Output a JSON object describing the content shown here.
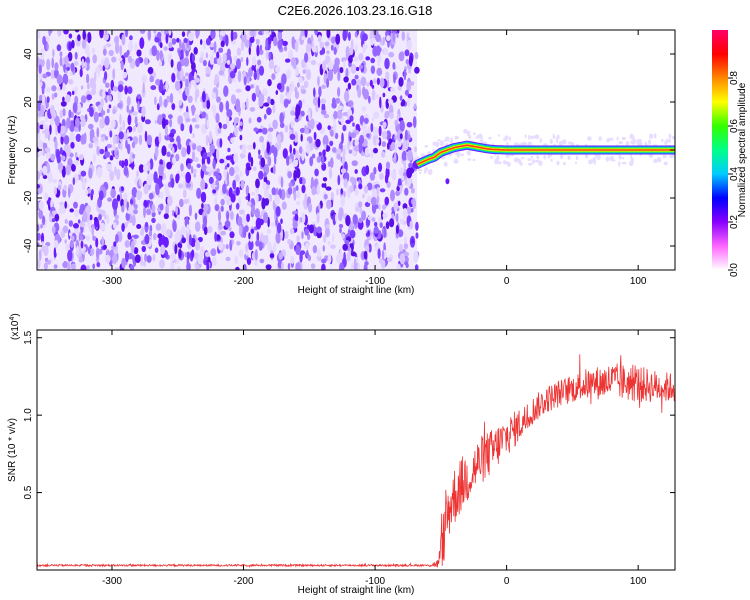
{
  "title": "C2E6.2026.103.23.16.G18",
  "colors": {
    "snr_line": "#ee3333",
    "axis": "#000000",
    "spectro_dense": "#6a1bff",
    "spectro_light": "#e3d4ff",
    "signal_band": "#ff3a20"
  },
  "colorbar": {
    "label": "Normalized spectral amplitude",
    "ticks": [
      "0.0",
      "0.2",
      "0.4",
      "0.6",
      "0.8"
    ],
    "tick_values": [
      0.0,
      0.2,
      0.4,
      0.6,
      0.8
    ],
    "range": [
      0,
      1
    ],
    "colormap": [
      "#ffffff",
      "#ff66ff",
      "#8800ff",
      "#0000ff",
      "#00ccff",
      "#00ff88",
      "#33ff00",
      "#ffff00",
      "#ff8800",
      "#ff0000",
      "#ff0066"
    ]
  },
  "chart_data": [
    {
      "type": "heatmap",
      "title": "C2E6.2026.103.23.16.G18",
      "xlabel": "Height of straight line (km)",
      "ylabel": "Frequency (Hz)",
      "xlim": [
        -357,
        128
      ],
      "ylim": [
        -50,
        50
      ],
      "x_ticks": [
        -300,
        -200,
        -100,
        0,
        100
      ],
      "x_tick_labels": [
        "-300",
        "-200",
        "-100",
        "0",
        "100"
      ],
      "y_ticks": [
        -40,
        -20,
        0,
        20,
        40
      ],
      "y_tick_labels": [
        "-40",
        "-20",
        "0",
        "20",
        "40"
      ],
      "noise_region_x": [
        -357,
        -68
      ],
      "signal_track": {
        "x": [
          -68,
          -64,
          -60,
          -55,
          -50,
          -45,
          -40,
          -35,
          -30,
          -25,
          -20,
          -15,
          -10,
          0,
          20,
          50,
          80,
          100,
          128
        ],
        "y": [
          -6,
          -5,
          -4,
          -3,
          -1,
          0,
          1,
          1.5,
          2,
          1.5,
          1,
          0.5,
          0.2,
          0,
          0,
          0,
          0,
          0,
          0
        ]
      }
    },
    {
      "type": "line",
      "xlabel": "Height of straight line (km)",
      "ylabel": "SNR (10 * v/v)",
      "y_scale_label": "(x10",
      "y_scale_exp": "4",
      "y_scale_close": ")",
      "xlim": [
        -357,
        128
      ],
      "ylim": [
        0,
        15500
      ],
      "x_ticks": [
        -300,
        -200,
        -100,
        0,
        100
      ],
      "x_tick_labels": [
        "-300",
        "-200",
        "-100",
        "0",
        "100"
      ],
      "y_ticks": [
        5000,
        10000,
        15000
      ],
      "y_tick_labels": [
        "0.5",
        "1.0",
        "1.5"
      ],
      "series": [
        {
          "x": [
            -357,
            -250,
            -150,
            -100,
            -60,
            -52,
            -48,
            -45,
            -42,
            -38,
            -32,
            -25,
            -18,
            -10,
            -5,
            0,
            5,
            10,
            15,
            20,
            30,
            40,
            50,
            60,
            70,
            80,
            90,
            100,
            110,
            120,
            128
          ],
          "y": [
            300,
            300,
            300,
            300,
            300,
            400,
            2000,
            3500,
            4500,
            5000,
            5800,
            6500,
            7200,
            7700,
            8200,
            8600,
            9000,
            9400,
            9800,
            10300,
            11000,
            11400,
            11700,
            12000,
            12100,
            12200,
            12100,
            12000,
            11900,
            11800,
            11800
          ],
          "noise_amplitude": [
            60,
            60,
            60,
            60,
            60,
            300,
            1800,
            2000,
            2000,
            1900,
            1800,
            1700,
            1600,
            1500,
            1400,
            1300,
            1200,
            1100,
            1000,
            900,
            900,
            900,
            900,
            1000,
            1100,
            1200,
            1200,
            1200,
            1100,
            1000,
            1000
          ]
        }
      ]
    }
  ]
}
